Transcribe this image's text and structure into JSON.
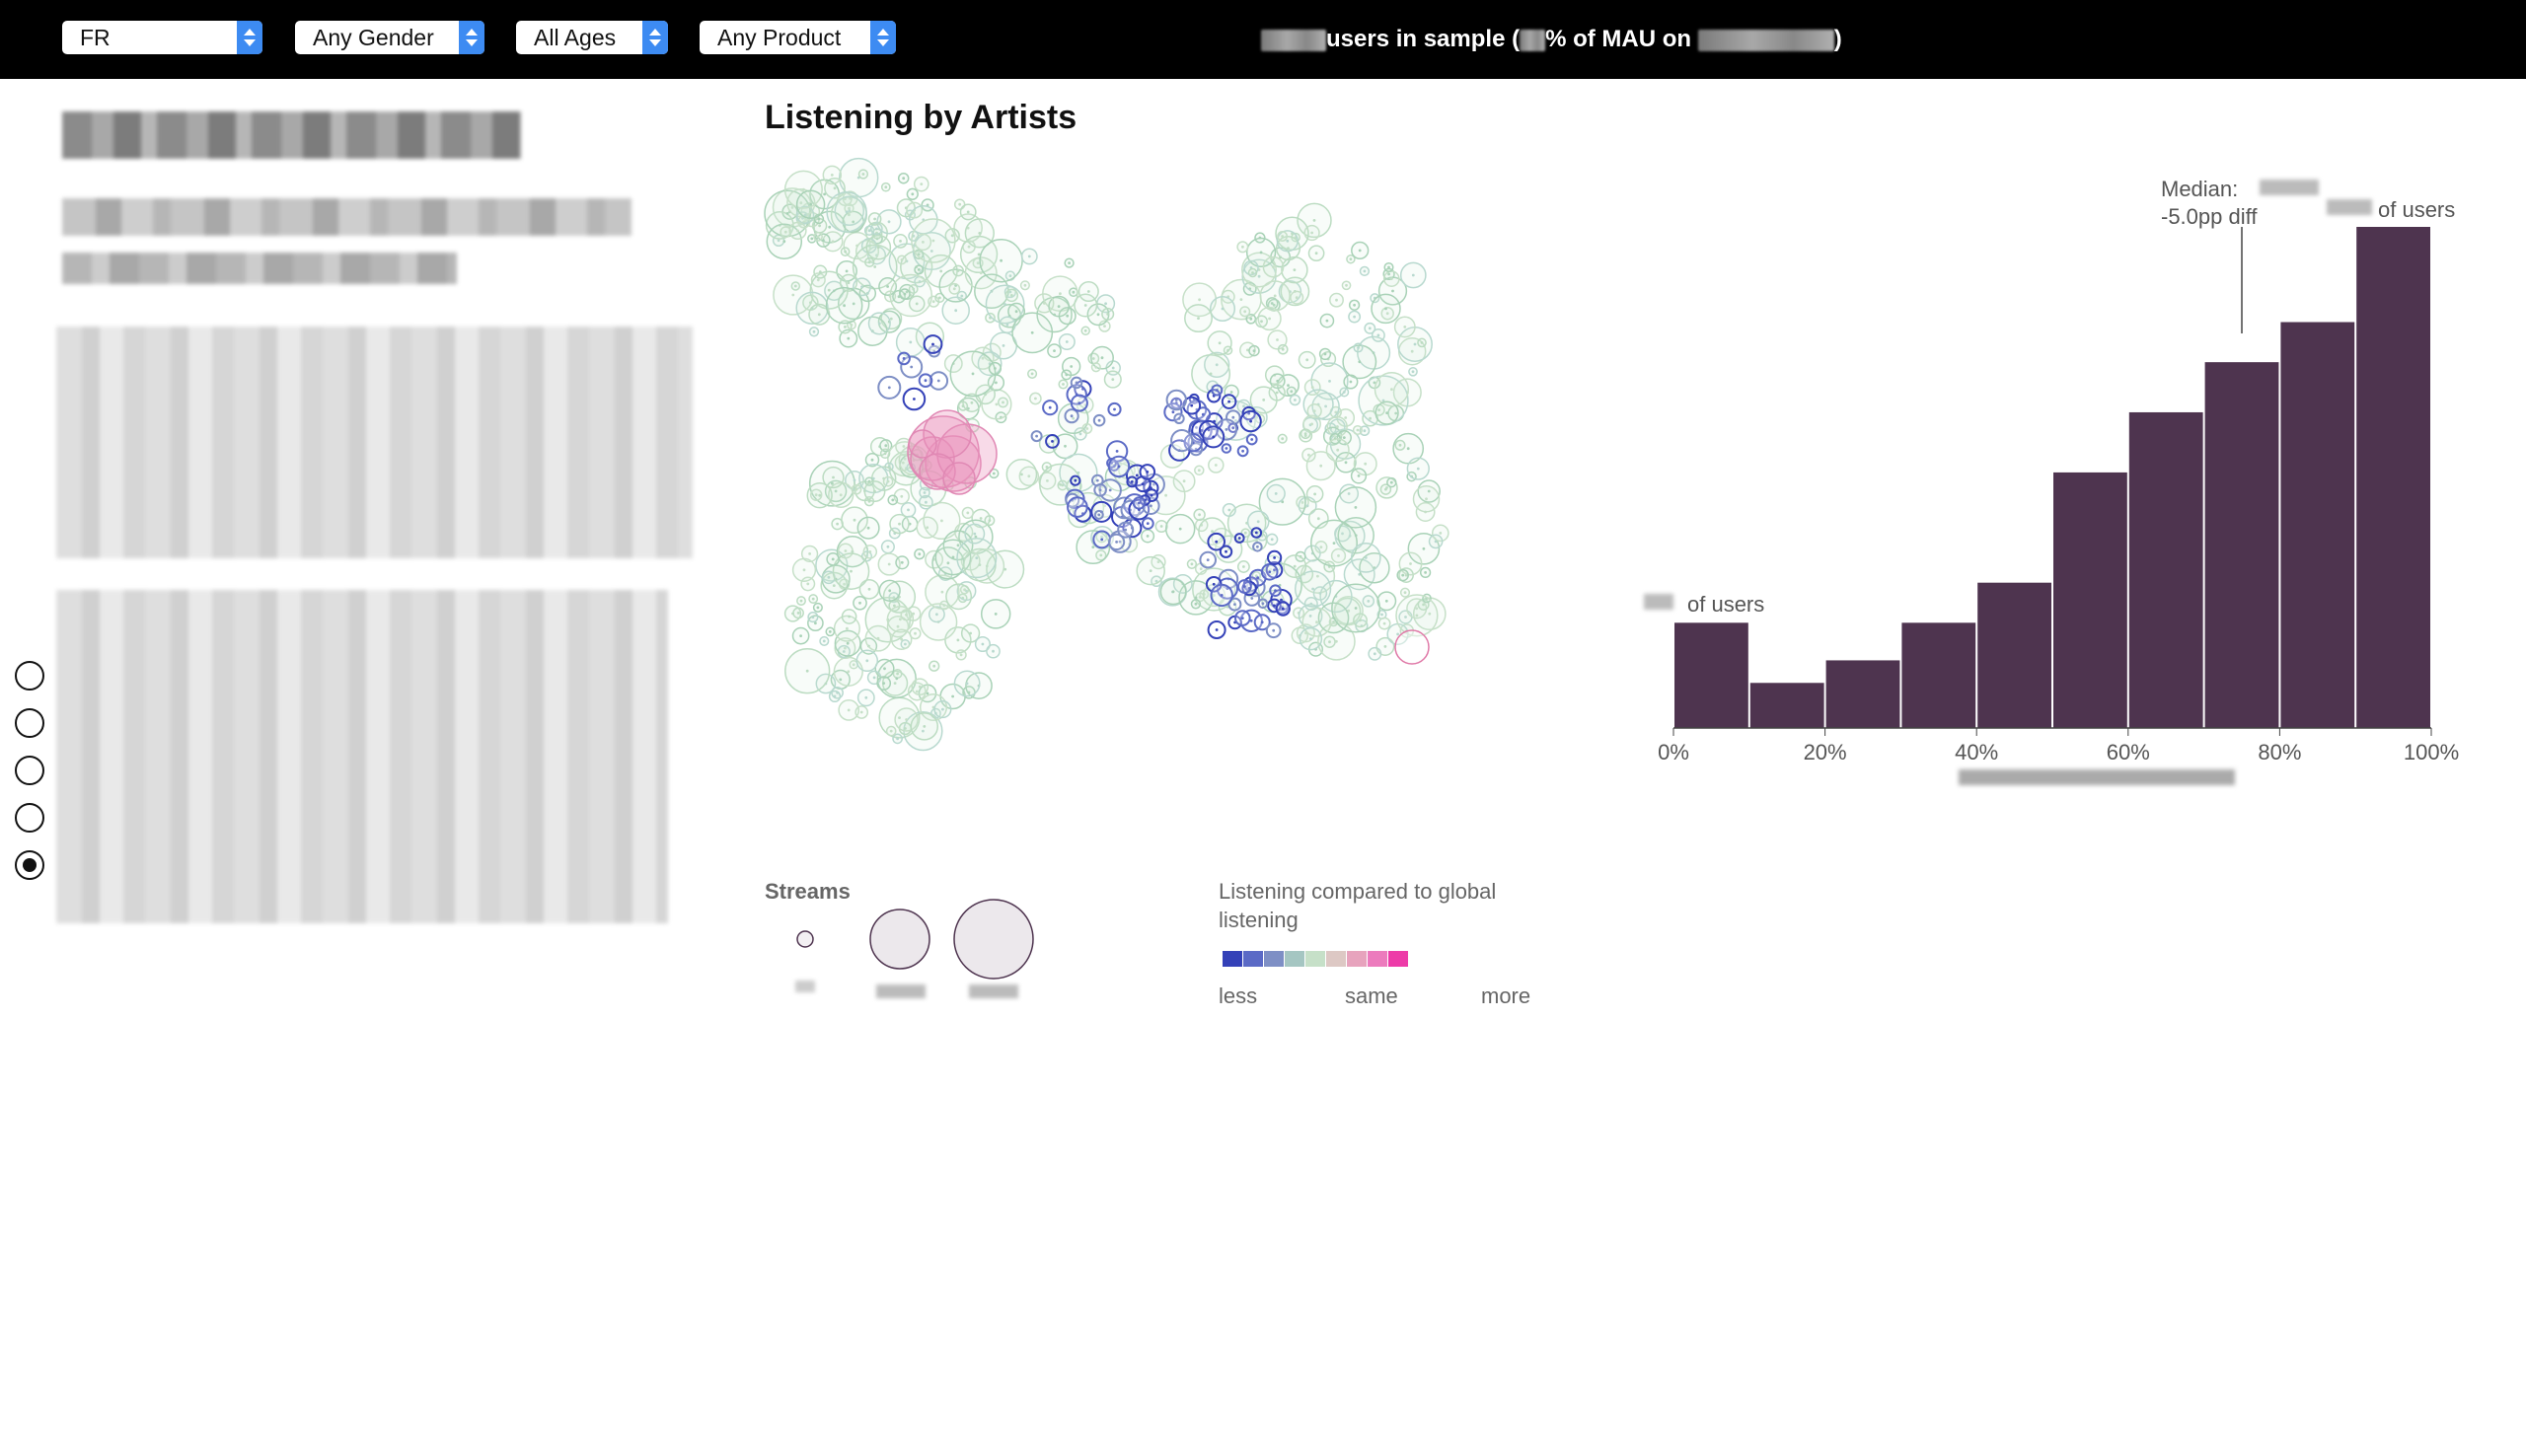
{
  "filters": {
    "country": "FR",
    "gender": "Any Gender",
    "age": "All Ages",
    "product": "Any Product"
  },
  "status": {
    "part1": "users in sample (",
    "part2": "% of MAU on",
    "part3": ")"
  },
  "scatter": {
    "title": "Listening by Artists"
  },
  "legend": {
    "streams_title": "Streams",
    "color_title_line1": "Listening compared to global",
    "color_title_line2": "listening",
    "less": "less",
    "same": "same",
    "more": "more",
    "colors": [
      "#3441b8",
      "#5b6ac6",
      "#7e8fc5",
      "#a5c6c2",
      "#c6e0c8",
      "#ddc8c4",
      "#e7a3bd",
      "#ec7bbd",
      "#ed3ba8"
    ]
  },
  "histogram": {
    "median_label": "Median:",
    "median_diff": "-5.0pp diff",
    "of_users": "of users",
    "bar_color": "#4e344f"
  },
  "chart_data": {
    "type": "bar",
    "categories": [
      "0-10%",
      "10-20%",
      "20-30%",
      "30-40%",
      "40-50%",
      "50-60%",
      "60-70%",
      "70-80%",
      "80-90%",
      "90-100%"
    ],
    "values": [
      0.21,
      0.09,
      0.135,
      0.21,
      0.29,
      0.51,
      0.63,
      0.73,
      0.81,
      1.0
    ],
    "x_ticks": [
      "0%",
      "20%",
      "40%",
      "60%",
      "80%",
      "100%"
    ],
    "xlim": [
      0,
      100
    ],
    "median_x": 75,
    "grid": false
  },
  "radios": [
    {
      "checked": false
    },
    {
      "checked": false
    },
    {
      "checked": false
    },
    {
      "checked": false
    },
    {
      "checked": true
    }
  ]
}
